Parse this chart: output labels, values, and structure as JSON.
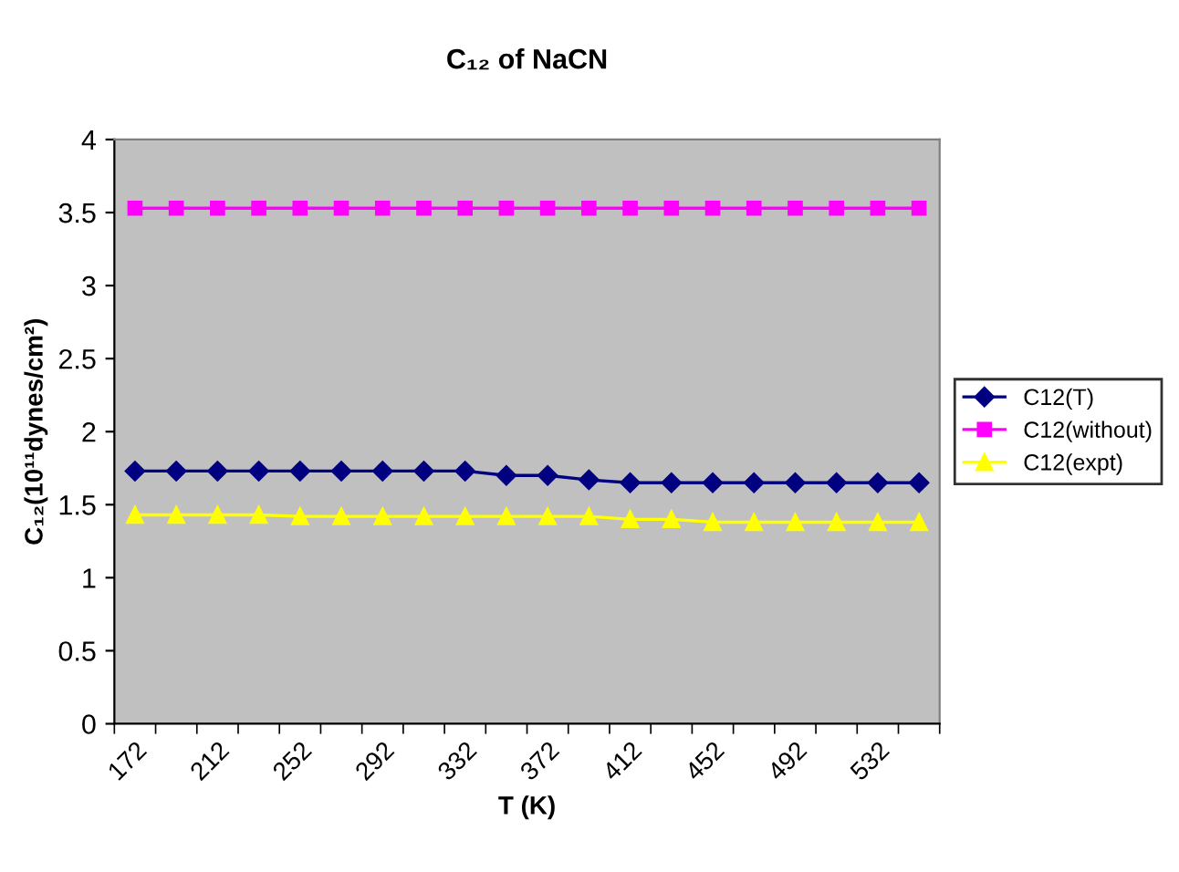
{
  "chart_data": {
    "type": "line",
    "title": "C₁₂ of NaCN",
    "xlabel": "T (K)",
    "ylabel": "C₁₂(10¹¹dynes/cm²)",
    "categories": [
      "172",
      null,
      "212",
      null,
      "252",
      null,
      "292",
      null,
      "332",
      null,
      "372",
      null,
      "412",
      null,
      "452",
      null,
      "492",
      null,
      "532",
      null
    ],
    "series": [
      {
        "name": "C12(T)",
        "color": "#000080",
        "marker": "diamond",
        "values": [
          1.73,
          1.73,
          1.73,
          1.73,
          1.73,
          1.73,
          1.73,
          1.73,
          1.73,
          1.7,
          1.7,
          1.67,
          1.65,
          1.65,
          1.65,
          1.65,
          1.65,
          1.65,
          1.65,
          1.65
        ]
      },
      {
        "name": "C12(without)",
        "color": "#ff00ff",
        "marker": "square",
        "values": [
          3.53,
          3.53,
          3.53,
          3.53,
          3.53,
          3.53,
          3.53,
          3.53,
          3.53,
          3.53,
          3.53,
          3.53,
          3.53,
          3.53,
          3.53,
          3.53,
          3.53,
          3.53,
          3.53,
          3.53
        ]
      },
      {
        "name": "C12(expt)",
        "color": "#ffff00",
        "marker": "triangle",
        "values": [
          1.43,
          1.43,
          1.43,
          1.43,
          1.42,
          1.42,
          1.42,
          1.42,
          1.42,
          1.42,
          1.42,
          1.42,
          1.4,
          1.4,
          1.38,
          1.38,
          1.38,
          1.38,
          1.38,
          1.38
        ]
      }
    ],
    "ylim": [
      0,
      4
    ],
    "yticks": [
      0,
      0.5,
      1,
      1.5,
      2,
      2.5,
      3,
      3.5,
      4
    ],
    "grid": false,
    "legend": "right"
  }
}
